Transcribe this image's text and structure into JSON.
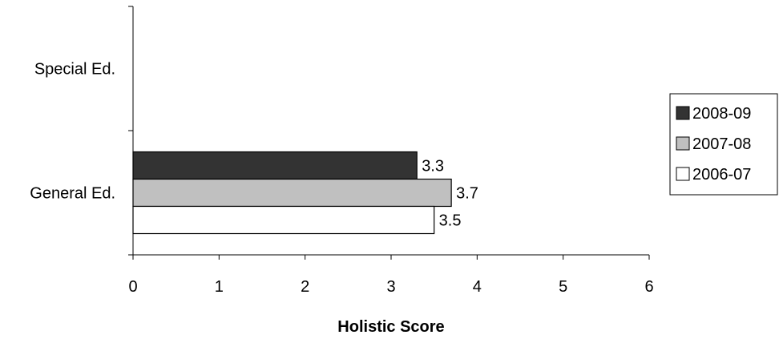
{
  "chart_data": {
    "type": "bar",
    "orientation": "horizontal",
    "categories": [
      "Special Ed.",
      "General Ed."
    ],
    "series": [
      {
        "name": "2008-09",
        "values": [
          null,
          3.3
        ],
        "color": "#333333"
      },
      {
        "name": "2007-08",
        "values": [
          null,
          3.7
        ],
        "color": "#c0c0c0"
      },
      {
        "name": "2006-07",
        "values": [
          null,
          3.5
        ],
        "color": "#ffffff"
      }
    ],
    "data_labels": [
      {
        "series": "2008-09",
        "category": "General Ed.",
        "text": "3.3"
      },
      {
        "series": "2007-08",
        "category": "General Ed.",
        "text": "3.7"
      },
      {
        "series": "2006-07",
        "category": "General Ed.",
        "text": "3.5"
      }
    ],
    "xlabel": "Holistic Score",
    "ylabel": "",
    "title": "",
    "xlim": [
      0,
      6
    ],
    "x_ticks": [
      "0",
      "1",
      "2",
      "3",
      "4",
      "5",
      "6"
    ],
    "grid": false,
    "legend_position": "right"
  }
}
